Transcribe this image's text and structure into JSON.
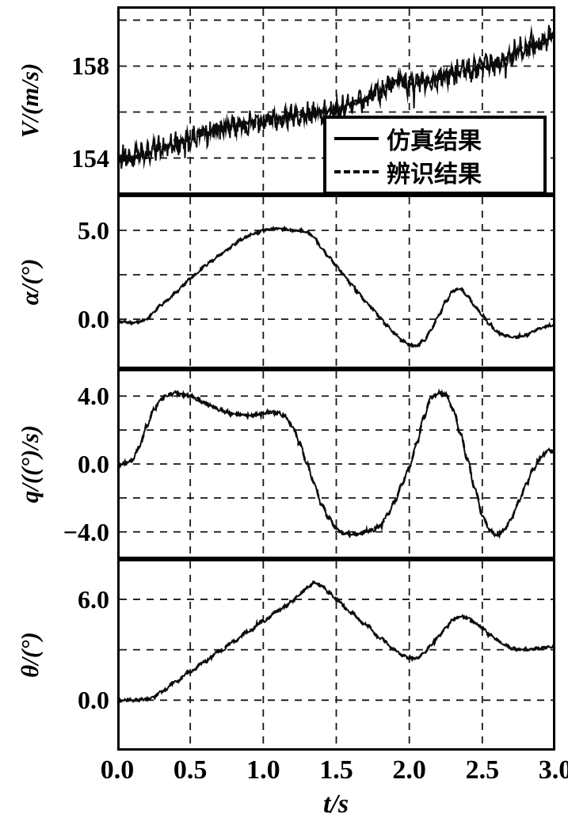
{
  "colors": {
    "ink": "#0b0b0b",
    "paper": "#ffffff",
    "grid": "#161616"
  },
  "chart_data": {
    "type": "line",
    "title": "",
    "xlabel": "t/s",
    "xlim": [
      0.0,
      3.0
    ],
    "grid": true,
    "xticks": [
      {
        "v": 0.0,
        "label": "0.0"
      },
      {
        "v": 0.5,
        "label": "0.5"
      },
      {
        "v": 1.0,
        "label": "1.0"
      },
      {
        "v": 1.5,
        "label": "1.5"
      },
      {
        "v": 2.0,
        "label": "2.0"
      },
      {
        "v": 2.5,
        "label": "2.5"
      },
      {
        "v": 3.0,
        "label": "3.0"
      }
    ],
    "legend": {
      "position": "top-right-of-first-panel",
      "items": [
        {
          "label": "仿真结果",
          "style": "solid"
        },
        {
          "label": "辨识结果",
          "style": "dashed"
        }
      ]
    },
    "panels": [
      {
        "name": "velocity",
        "ylabel": "V/(m/s)",
        "ylim": [
          152.4,
          160.6
        ],
        "yticks": [
          {
            "v": 158,
            "label": "158"
          },
          {
            "v": 154,
            "label": "154"
          }
        ],
        "gridlines": [
          160,
          158,
          156,
          154
        ],
        "series": [
          {
            "name": "仿真结果",
            "style": "solid",
            "noise": 0.42,
            "points": [
              [
                0,
                153.9
              ],
              [
                0.1,
                154.0
              ],
              [
                0.2,
                154.2
              ],
              [
                0.3,
                154.45
              ],
              [
                0.4,
                154.65
              ],
              [
                0.5,
                154.85
              ],
              [
                0.6,
                155.05
              ],
              [
                0.7,
                155.25
              ],
              [
                0.8,
                155.45
              ],
              [
                0.9,
                155.55
              ],
              [
                1.0,
                155.65
              ],
              [
                1.1,
                155.75
              ],
              [
                1.2,
                155.85
              ],
              [
                1.3,
                155.9
              ],
              [
                1.4,
                156.0
              ],
              [
                1.5,
                156.1
              ],
              [
                1.6,
                156.3
              ],
              [
                1.7,
                156.55
              ],
              [
                1.8,
                156.9
              ],
              [
                1.9,
                157.3
              ],
              [
                2.0,
                157.2
              ],
              [
                2.1,
                157.35
              ],
              [
                2.2,
                157.5
              ],
              [
                2.3,
                157.7
              ],
              [
                2.4,
                157.8
              ],
              [
                2.5,
                157.95
              ],
              [
                2.6,
                158.1
              ],
              [
                2.7,
                158.45
              ],
              [
                2.8,
                158.9
              ],
              [
                2.9,
                159.0
              ],
              [
                3.0,
                159.4
              ]
            ]
          },
          {
            "name": "辨识结果",
            "style": "dashed",
            "noise": 0.08,
            "same_as": 0,
            "points": []
          }
        ]
      },
      {
        "name": "angle-of-attack",
        "ylabel": "α/(°)",
        "ylim": [
          -2.8,
          7.0
        ],
        "yticks": [
          {
            "v": 5.0,
            "label": "5.0"
          },
          {
            "v": 0.0,
            "label": "0.0"
          }
        ],
        "gridlines": [
          5.0,
          2.5,
          0.0
        ],
        "series": [
          {
            "name": "仿真结果",
            "style": "solid",
            "noise": 0.05,
            "points": [
              [
                0,
                -0.1
              ],
              [
                0.05,
                -0.15
              ],
              [
                0.1,
                -0.2
              ],
              [
                0.15,
                -0.15
              ],
              [
                0.2,
                0.0
              ],
              [
                0.25,
                0.4
              ],
              [
                0.3,
                0.8
              ],
              [
                0.35,
                1.1
              ],
              [
                0.4,
                1.5
              ],
              [
                0.45,
                1.9
              ],
              [
                0.5,
                2.3
              ],
              [
                0.55,
                2.6
              ],
              [
                0.6,
                3.0
              ],
              [
                0.65,
                3.3
              ],
              [
                0.7,
                3.6
              ],
              [
                0.75,
                3.9
              ],
              [
                0.8,
                4.2
              ],
              [
                0.85,
                4.5
              ],
              [
                0.9,
                4.7
              ],
              [
                0.95,
                4.85
              ],
              [
                1.0,
                5.0
              ],
              [
                1.05,
                5.05
              ],
              [
                1.1,
                5.1
              ],
              [
                1.15,
                5.05
              ],
              [
                1.2,
                5.0
              ],
              [
                1.25,
                4.95
              ],
              [
                1.3,
                4.9
              ],
              [
                1.35,
                4.6
              ],
              [
                1.4,
                4.0
              ],
              [
                1.45,
                3.5
              ],
              [
                1.5,
                3.0
              ],
              [
                1.55,
                2.5
              ],
              [
                1.6,
                2.0
              ],
              [
                1.65,
                1.5
              ],
              [
                1.7,
                1.0
              ],
              [
                1.75,
                0.6
              ],
              [
                1.8,
                0.1
              ],
              [
                1.85,
                -0.4
              ],
              [
                1.9,
                -0.8
              ],
              [
                1.95,
                -1.2
              ],
              [
                2.0,
                -1.45
              ],
              [
                2.05,
                -1.5
              ],
              [
                2.1,
                -1.2
              ],
              [
                2.15,
                -0.6
              ],
              [
                2.2,
                0.2
              ],
              [
                2.25,
                1.0
              ],
              [
                2.3,
                1.6
              ],
              [
                2.35,
                1.7
              ],
              [
                2.4,
                1.3
              ],
              [
                2.45,
                0.7
              ],
              [
                2.5,
                0.2
              ],
              [
                2.55,
                -0.3
              ],
              [
                2.6,
                -0.7
              ],
              [
                2.65,
                -0.9
              ],
              [
                2.7,
                -1.0
              ],
              [
                2.75,
                -1.0
              ],
              [
                2.8,
                -0.9
              ],
              [
                2.85,
                -0.7
              ],
              [
                2.9,
                -0.5
              ],
              [
                2.95,
                -0.4
              ],
              [
                3.0,
                -0.3
              ]
            ]
          },
          {
            "name": "辨识结果",
            "style": "dashed",
            "noise": 0.05,
            "same_as": 0,
            "points": []
          }
        ]
      },
      {
        "name": "pitch-rate",
        "ylabel": "q/((°)/s)",
        "ylim": [
          -5.6,
          5.6
        ],
        "yticks": [
          {
            "v": 4.0,
            "label": "4.0"
          },
          {
            "v": 0.0,
            "label": "0.0"
          },
          {
            "v": -4.0,
            "label": "−4.0"
          }
        ],
        "gridlines": [
          4.0,
          2.0,
          0.0,
          -2.0,
          -4.0
        ],
        "series": [
          {
            "name": "仿真结果",
            "style": "solid",
            "noise": 0.08,
            "points": [
              [
                0,
                0.0
              ],
              [
                0.05,
                0.05
              ],
              [
                0.1,
                0.2
              ],
              [
                0.15,
                1.0
              ],
              [
                0.2,
                2.2
              ],
              [
                0.25,
                3.2
              ],
              [
                0.3,
                3.8
              ],
              [
                0.35,
                4.1
              ],
              [
                0.4,
                4.2
              ],
              [
                0.45,
                4.1
              ],
              [
                0.5,
                4.0
              ],
              [
                0.55,
                3.8
              ],
              [
                0.6,
                3.6
              ],
              [
                0.65,
                3.4
              ],
              [
                0.7,
                3.2
              ],
              [
                0.75,
                3.05
              ],
              [
                0.8,
                2.95
              ],
              [
                0.85,
                2.9
              ],
              [
                0.9,
                2.85
              ],
              [
                0.95,
                2.9
              ],
              [
                1.0,
                3.0
              ],
              [
                1.05,
                3.05
              ],
              [
                1.1,
                3.0
              ],
              [
                1.15,
                2.8
              ],
              [
                1.2,
                2.2
              ],
              [
                1.25,
                1.2
              ],
              [
                1.3,
                0.0
              ],
              [
                1.35,
                -1.2
              ],
              [
                1.4,
                -2.4
              ],
              [
                1.45,
                -3.2
              ],
              [
                1.5,
                -3.8
              ],
              [
                1.55,
                -4.1
              ],
              [
                1.6,
                -4.15
              ],
              [
                1.65,
                -4.1
              ],
              [
                1.7,
                -4.0
              ],
              [
                1.75,
                -3.9
              ],
              [
                1.8,
                -3.6
              ],
              [
                1.85,
                -3.0
              ],
              [
                1.9,
                -2.2
              ],
              [
                1.95,
                -1.2
              ],
              [
                2.0,
                -0.2
              ],
              [
                2.05,
                1.2
              ],
              [
                2.1,
                2.8
              ],
              [
                2.15,
                3.9
              ],
              [
                2.2,
                4.2
              ],
              [
                2.25,
                4.1
              ],
              [
                2.3,
                3.2
              ],
              [
                2.35,
                1.8
              ],
              [
                2.4,
                0.2
              ],
              [
                2.45,
                -1.5
              ],
              [
                2.5,
                -3.0
              ],
              [
                2.55,
                -3.9
              ],
              [
                2.6,
                -4.2
              ],
              [
                2.65,
                -3.9
              ],
              [
                2.7,
                -3.2
              ],
              [
                2.75,
                -2.2
              ],
              [
                2.8,
                -1.2
              ],
              [
                2.85,
                -0.3
              ],
              [
                2.9,
                0.4
              ],
              [
                2.95,
                0.8
              ],
              [
                3.0,
                0.7
              ]
            ]
          },
          {
            "name": "辨识结果",
            "style": "dashed",
            "noise": 0.08,
            "same_as": 0,
            "points": []
          }
        ]
      },
      {
        "name": "pitch-angle",
        "ylabel": "θ/(°)",
        "ylim": [
          -3.0,
          8.4
        ],
        "yticks": [
          {
            "v": 6.0,
            "label": "6.0"
          },
          {
            "v": 0.0,
            "label": "0.0"
          }
        ],
        "gridlines": [
          6.0,
          3.0,
          0.0
        ],
        "series": [
          {
            "name": "仿真结果",
            "style": "solid",
            "noise": 0.06,
            "points": [
              [
                0,
                0.0
              ],
              [
                0.1,
                0.0
              ],
              [
                0.2,
                0.05
              ],
              [
                0.25,
                0.2
              ],
              [
                0.3,
                0.5
              ],
              [
                0.4,
                1.1
              ],
              [
                0.5,
                1.7
              ],
              [
                0.6,
                2.3
              ],
              [
                0.7,
                2.9
              ],
              [
                0.8,
                3.5
              ],
              [
                0.9,
                4.1
              ],
              [
                1.0,
                4.7
              ],
              [
                1.1,
                5.3
              ],
              [
                1.15,
                5.6
              ],
              [
                1.2,
                5.9
              ],
              [
                1.25,
                6.3
              ],
              [
                1.3,
                6.7
              ],
              [
                1.35,
                7.0
              ],
              [
                1.4,
                6.8
              ],
              [
                1.45,
                6.4
              ],
              [
                1.5,
                6.0
              ],
              [
                1.6,
                5.2
              ],
              [
                1.7,
                4.5
              ],
              [
                1.8,
                3.7
              ],
              [
                1.9,
                3.0
              ],
              [
                1.95,
                2.7
              ],
              [
                2.0,
                2.5
              ],
              [
                2.05,
                2.5
              ],
              [
                2.1,
                2.8
              ],
              [
                2.15,
                3.3
              ],
              [
                2.2,
                3.8
              ],
              [
                2.25,
                4.3
              ],
              [
                2.3,
                4.8
              ],
              [
                2.35,
                5.0
              ],
              [
                2.4,
                4.9
              ],
              [
                2.45,
                4.6
              ],
              [
                2.5,
                4.3
              ],
              [
                2.55,
                3.9
              ],
              [
                2.6,
                3.6
              ],
              [
                2.65,
                3.3
              ],
              [
                2.7,
                3.1
              ],
              [
                2.75,
                3.0
              ],
              [
                2.8,
                3.0
              ],
              [
                2.85,
                3.05
              ],
              [
                2.9,
                3.1
              ],
              [
                2.95,
                3.15
              ],
              [
                3.0,
                3.2
              ]
            ]
          },
          {
            "name": "辨识结果",
            "style": "dashed",
            "noise": 0.06,
            "same_as": 0,
            "points": []
          }
        ]
      }
    ]
  }
}
